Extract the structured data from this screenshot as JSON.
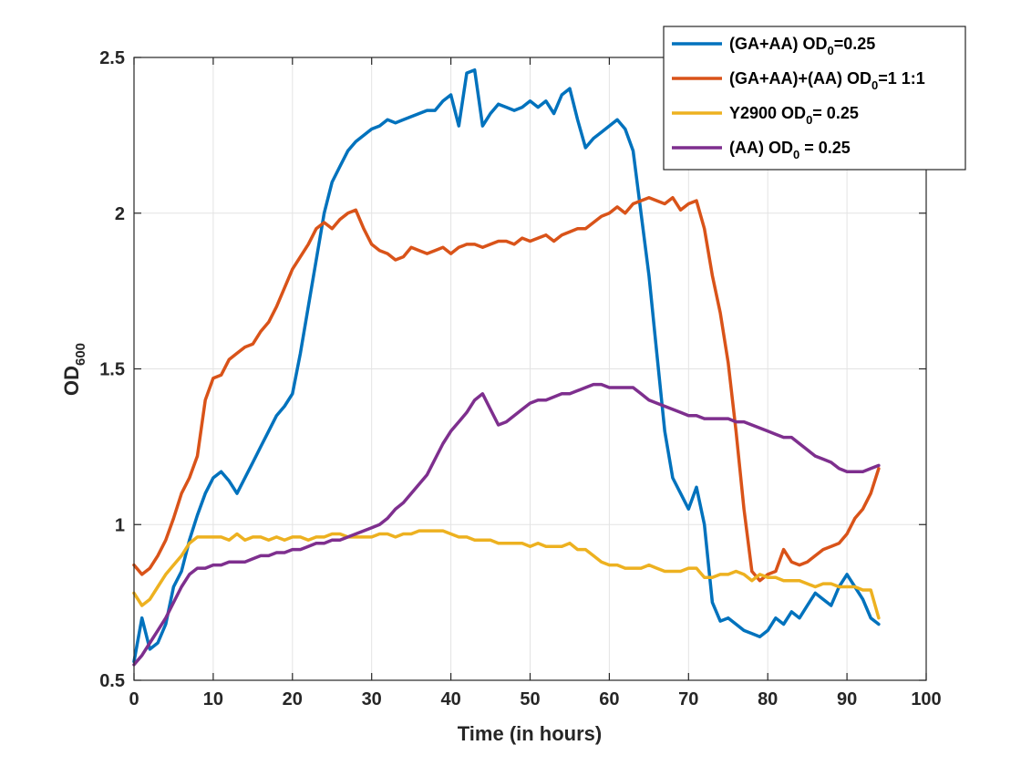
{
  "chart_data": {
    "type": "line",
    "xlabel": "Time (in hours)",
    "ylabel": {
      "main": "OD",
      "sub": "600"
    },
    "xlim": [
      0,
      100
    ],
    "ylim": [
      0.5,
      2.5
    ],
    "xticks": [
      0,
      10,
      20,
      30,
      40,
      50,
      60,
      70,
      80,
      90,
      100
    ],
    "yticks": [
      0.5,
      1,
      1.5,
      2,
      2.5
    ],
    "xtick_labels": [
      "0",
      "10",
      "20",
      "30",
      "40",
      "50",
      "60",
      "70",
      "80",
      "90",
      "100"
    ],
    "ytick_labels": [
      "0.5",
      "1",
      "1.5",
      "2",
      "2.5"
    ],
    "grid": true,
    "legend_position": "top-right",
    "series": [
      {
        "name": "(GA+AA) OD0=0.25",
        "legend": [
          {
            "t": "(GA+AA) OD"
          },
          {
            "t": "0",
            "sub": true
          },
          {
            "t": "=0.25"
          }
        ],
        "color": "#0072BD",
        "x": [
          0,
          1,
          2,
          3,
          4,
          5,
          6,
          7,
          8,
          9,
          10,
          11,
          12,
          13,
          14,
          15,
          16,
          17,
          18,
          19,
          20,
          21,
          22,
          23,
          24,
          25,
          26,
          27,
          28,
          29,
          30,
          31,
          32,
          33,
          34,
          35,
          36,
          37,
          38,
          39,
          40,
          41,
          42,
          43,
          44,
          45,
          46,
          47,
          48,
          49,
          50,
          51,
          52,
          53,
          54,
          55,
          56,
          57,
          58,
          59,
          60,
          61,
          62,
          63,
          64,
          65,
          66,
          67,
          68,
          69,
          70,
          71,
          72,
          73,
          74,
          75,
          76,
          77,
          78,
          79,
          80,
          81,
          82,
          83,
          84,
          85,
          86,
          87,
          88,
          89,
          90,
          91,
          92,
          93,
          94
        ],
        "y": [
          0.56,
          0.7,
          0.6,
          0.62,
          0.68,
          0.8,
          0.85,
          0.95,
          1.03,
          1.1,
          1.15,
          1.17,
          1.14,
          1.1,
          1.15,
          1.2,
          1.25,
          1.3,
          1.35,
          1.38,
          1.42,
          1.55,
          1.7,
          1.85,
          2.0,
          2.1,
          2.15,
          2.2,
          2.23,
          2.25,
          2.27,
          2.28,
          2.3,
          2.29,
          2.3,
          2.31,
          2.32,
          2.33,
          2.33,
          2.36,
          2.38,
          2.28,
          2.45,
          2.46,
          2.28,
          2.32,
          2.35,
          2.34,
          2.33,
          2.34,
          2.36,
          2.34,
          2.36,
          2.32,
          2.38,
          2.4,
          2.3,
          2.21,
          2.24,
          2.26,
          2.28,
          2.3,
          2.27,
          2.2,
          2.0,
          1.8,
          1.55,
          1.3,
          1.15,
          1.1,
          1.05,
          1.12,
          1.0,
          0.75,
          0.69,
          0.7,
          0.68,
          0.66,
          0.65,
          0.64,
          0.66,
          0.7,
          0.68,
          0.72,
          0.7,
          0.74,
          0.78,
          0.76,
          0.74,
          0.8,
          0.84,
          0.8,
          0.76,
          0.7,
          0.68
        ]
      },
      {
        "name": "(GA+AA)+(AA) OD0=1 1:1",
        "legend": [
          {
            "t": "(GA+AA)+(AA) OD"
          },
          {
            "t": "0",
            "sub": true
          },
          {
            "t": "=1 1:1"
          }
        ],
        "color": "#D95319",
        "x": [
          0,
          1,
          2,
          3,
          4,
          5,
          6,
          7,
          8,
          9,
          10,
          11,
          12,
          13,
          14,
          15,
          16,
          17,
          18,
          19,
          20,
          21,
          22,
          23,
          24,
          25,
          26,
          27,
          28,
          29,
          30,
          31,
          32,
          33,
          34,
          35,
          36,
          37,
          38,
          39,
          40,
          41,
          42,
          43,
          44,
          45,
          46,
          47,
          48,
          49,
          50,
          51,
          52,
          53,
          54,
          55,
          56,
          57,
          58,
          59,
          60,
          61,
          62,
          63,
          64,
          65,
          66,
          67,
          68,
          69,
          70,
          71,
          72,
          73,
          74,
          75,
          76,
          77,
          78,
          79,
          80,
          81,
          82,
          83,
          84,
          85,
          86,
          87,
          88,
          89,
          90,
          91,
          92,
          93,
          94
        ],
        "y": [
          0.87,
          0.84,
          0.86,
          0.9,
          0.95,
          1.02,
          1.1,
          1.15,
          1.22,
          1.4,
          1.47,
          1.48,
          1.53,
          1.55,
          1.57,
          1.58,
          1.62,
          1.65,
          1.7,
          1.76,
          1.82,
          1.86,
          1.9,
          1.95,
          1.97,
          1.95,
          1.98,
          2.0,
          2.01,
          1.95,
          1.9,
          1.88,
          1.87,
          1.85,
          1.86,
          1.89,
          1.88,
          1.87,
          1.88,
          1.89,
          1.87,
          1.89,
          1.9,
          1.9,
          1.89,
          1.9,
          1.91,
          1.91,
          1.9,
          1.92,
          1.91,
          1.92,
          1.93,
          1.91,
          1.93,
          1.94,
          1.95,
          1.95,
          1.97,
          1.99,
          2.0,
          2.02,
          2.0,
          2.03,
          2.04,
          2.05,
          2.04,
          2.03,
          2.05,
          2.01,
          2.03,
          2.04,
          1.95,
          1.8,
          1.68,
          1.52,
          1.3,
          1.05,
          0.85,
          0.82,
          0.84,
          0.85,
          0.92,
          0.88,
          0.87,
          0.88,
          0.9,
          0.92,
          0.93,
          0.94,
          0.97,
          1.02,
          1.05,
          1.1,
          1.18
        ]
      },
      {
        "name": "Y2900 OD0= 0.25",
        "legend": [
          {
            "t": "Y2900 OD"
          },
          {
            "t": "0",
            "sub": true
          },
          {
            "t": "= 0.25"
          }
        ],
        "color": "#EDB120",
        "x": [
          0,
          1,
          2,
          3,
          4,
          5,
          6,
          7,
          8,
          9,
          10,
          11,
          12,
          13,
          14,
          15,
          16,
          17,
          18,
          19,
          20,
          21,
          22,
          23,
          24,
          25,
          26,
          27,
          28,
          29,
          30,
          31,
          32,
          33,
          34,
          35,
          36,
          37,
          38,
          39,
          40,
          41,
          42,
          43,
          44,
          45,
          46,
          47,
          48,
          49,
          50,
          51,
          52,
          53,
          54,
          55,
          56,
          57,
          58,
          59,
          60,
          61,
          62,
          63,
          64,
          65,
          66,
          67,
          68,
          69,
          70,
          71,
          72,
          73,
          74,
          75,
          76,
          77,
          78,
          79,
          80,
          81,
          82,
          83,
          84,
          85,
          86,
          87,
          88,
          89,
          90,
          91,
          92,
          93,
          94
        ],
        "y": [
          0.78,
          0.74,
          0.76,
          0.8,
          0.84,
          0.87,
          0.9,
          0.94,
          0.96,
          0.96,
          0.96,
          0.96,
          0.95,
          0.97,
          0.95,
          0.96,
          0.96,
          0.95,
          0.96,
          0.95,
          0.96,
          0.96,
          0.95,
          0.96,
          0.96,
          0.97,
          0.97,
          0.96,
          0.96,
          0.96,
          0.96,
          0.97,
          0.97,
          0.96,
          0.97,
          0.97,
          0.98,
          0.98,
          0.98,
          0.98,
          0.97,
          0.96,
          0.96,
          0.95,
          0.95,
          0.95,
          0.94,
          0.94,
          0.94,
          0.94,
          0.93,
          0.94,
          0.93,
          0.93,
          0.93,
          0.94,
          0.92,
          0.92,
          0.9,
          0.88,
          0.87,
          0.87,
          0.86,
          0.86,
          0.86,
          0.87,
          0.86,
          0.85,
          0.85,
          0.85,
          0.86,
          0.86,
          0.83,
          0.83,
          0.84,
          0.84,
          0.85,
          0.84,
          0.82,
          0.84,
          0.83,
          0.83,
          0.82,
          0.82,
          0.82,
          0.81,
          0.8,
          0.81,
          0.81,
          0.8,
          0.8,
          0.8,
          0.79,
          0.79,
          0.7
        ]
      },
      {
        "name": "(AA) OD0 = 0.25",
        "legend": [
          {
            "t": "(AA) OD"
          },
          {
            "t": "0",
            "sub": true
          },
          {
            "t": " = 0.25"
          }
        ],
        "color": "#7E2F8E",
        "x": [
          0,
          1,
          2,
          3,
          4,
          5,
          6,
          7,
          8,
          9,
          10,
          11,
          12,
          13,
          14,
          15,
          16,
          17,
          18,
          19,
          20,
          21,
          22,
          23,
          24,
          25,
          26,
          27,
          28,
          29,
          30,
          31,
          32,
          33,
          34,
          35,
          36,
          37,
          38,
          39,
          40,
          41,
          42,
          43,
          44,
          45,
          46,
          47,
          48,
          49,
          50,
          51,
          52,
          53,
          54,
          55,
          56,
          57,
          58,
          59,
          60,
          61,
          62,
          63,
          64,
          65,
          66,
          67,
          68,
          69,
          70,
          71,
          72,
          73,
          74,
          75,
          76,
          77,
          78,
          79,
          80,
          81,
          82,
          83,
          84,
          85,
          86,
          87,
          88,
          89,
          90,
          91,
          92,
          93,
          94
        ],
        "y": [
          0.55,
          0.58,
          0.62,
          0.66,
          0.7,
          0.75,
          0.8,
          0.84,
          0.86,
          0.86,
          0.87,
          0.87,
          0.88,
          0.88,
          0.88,
          0.89,
          0.9,
          0.9,
          0.91,
          0.91,
          0.92,
          0.92,
          0.93,
          0.94,
          0.94,
          0.95,
          0.95,
          0.96,
          0.97,
          0.98,
          0.99,
          1.0,
          1.02,
          1.05,
          1.07,
          1.1,
          1.13,
          1.16,
          1.21,
          1.26,
          1.3,
          1.33,
          1.36,
          1.4,
          1.42,
          1.37,
          1.32,
          1.33,
          1.35,
          1.37,
          1.39,
          1.4,
          1.4,
          1.41,
          1.42,
          1.42,
          1.43,
          1.44,
          1.45,
          1.45,
          1.44,
          1.44,
          1.44,
          1.44,
          1.42,
          1.4,
          1.39,
          1.38,
          1.37,
          1.36,
          1.35,
          1.35,
          1.34,
          1.34,
          1.34,
          1.34,
          1.33,
          1.33,
          1.32,
          1.31,
          1.3,
          1.29,
          1.28,
          1.28,
          1.26,
          1.24,
          1.22,
          1.21,
          1.2,
          1.18,
          1.17,
          1.17,
          1.17,
          1.18,
          1.19
        ]
      }
    ]
  }
}
